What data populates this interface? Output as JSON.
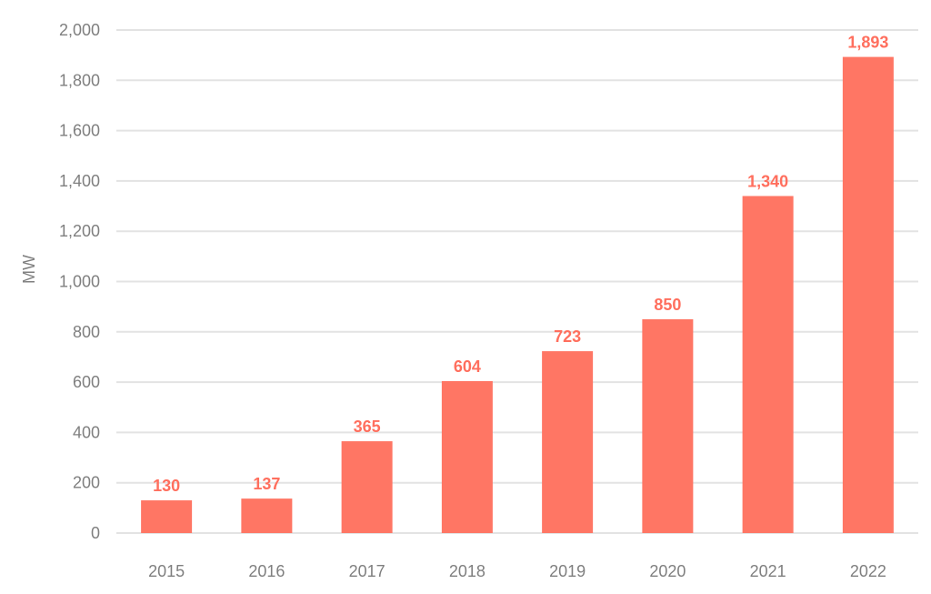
{
  "chart_data": {
    "type": "bar",
    "title": "",
    "xlabel": "",
    "ylabel": "MW",
    "ylim": [
      0,
      2000
    ],
    "yticks": [
      0,
      200,
      400,
      600,
      800,
      1000,
      1200,
      1400,
      1600,
      1800,
      2000
    ],
    "grid": true,
    "categories": [
      "2015",
      "2016",
      "2017",
      "2018",
      "2019",
      "2020",
      "2021",
      "2022"
    ],
    "values": [
      130,
      137,
      365,
      604,
      723,
      850,
      1340,
      1893
    ],
    "data_labels": [
      "130",
      "137",
      "365",
      "604",
      "723",
      "850",
      "1,340",
      "1,893"
    ],
    "colors": {
      "bar": "#FF7664",
      "label": "#FF6F5E",
      "axis_text": "#7F7F7F",
      "grid": "#E3E3E3"
    }
  }
}
